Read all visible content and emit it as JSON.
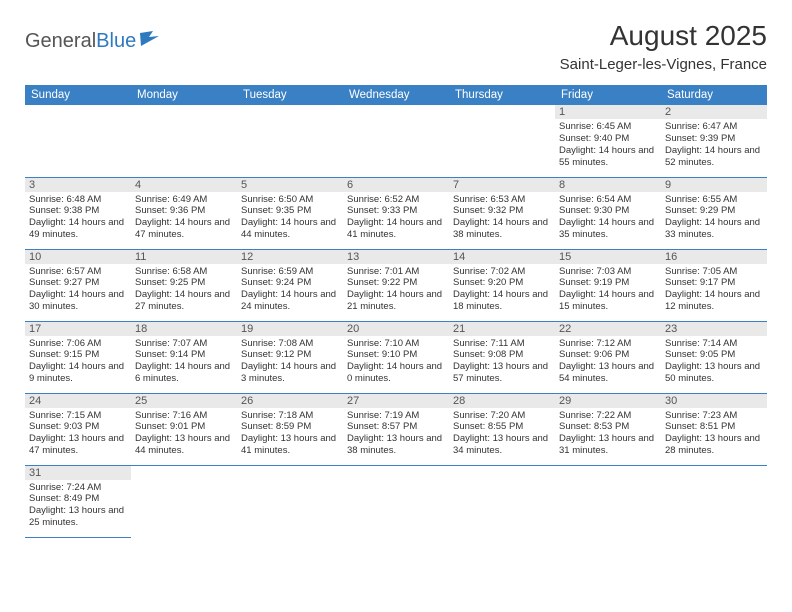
{
  "logo": {
    "text_gray": "General",
    "text_blue": "Blue"
  },
  "title": "August 2025",
  "location": "Saint-Leger-les-Vignes, France",
  "colors": {
    "header_bg": "#3a80c4",
    "header_text": "#ffffff",
    "daynum_bg": "#e9e9e9",
    "border": "#3a80c4",
    "body_text": "#333333"
  },
  "day_headers": [
    "Sunday",
    "Monday",
    "Tuesday",
    "Wednesday",
    "Thursday",
    "Friday",
    "Saturday"
  ],
  "weeks": [
    [
      null,
      null,
      null,
      null,
      null,
      {
        "n": "1",
        "sr": "6:45 AM",
        "ss": "9:40 PM",
        "dl": "14 hours and 55 minutes."
      },
      {
        "n": "2",
        "sr": "6:47 AM",
        "ss": "9:39 PM",
        "dl": "14 hours and 52 minutes."
      }
    ],
    [
      {
        "n": "3",
        "sr": "6:48 AM",
        "ss": "9:38 PM",
        "dl": "14 hours and 49 minutes."
      },
      {
        "n": "4",
        "sr": "6:49 AM",
        "ss": "9:36 PM",
        "dl": "14 hours and 47 minutes."
      },
      {
        "n": "5",
        "sr": "6:50 AM",
        "ss": "9:35 PM",
        "dl": "14 hours and 44 minutes."
      },
      {
        "n": "6",
        "sr": "6:52 AM",
        "ss": "9:33 PM",
        "dl": "14 hours and 41 minutes."
      },
      {
        "n": "7",
        "sr": "6:53 AM",
        "ss": "9:32 PM",
        "dl": "14 hours and 38 minutes."
      },
      {
        "n": "8",
        "sr": "6:54 AM",
        "ss": "9:30 PM",
        "dl": "14 hours and 35 minutes."
      },
      {
        "n": "9",
        "sr": "6:55 AM",
        "ss": "9:29 PM",
        "dl": "14 hours and 33 minutes."
      }
    ],
    [
      {
        "n": "10",
        "sr": "6:57 AM",
        "ss": "9:27 PM",
        "dl": "14 hours and 30 minutes."
      },
      {
        "n": "11",
        "sr": "6:58 AM",
        "ss": "9:25 PM",
        "dl": "14 hours and 27 minutes."
      },
      {
        "n": "12",
        "sr": "6:59 AM",
        "ss": "9:24 PM",
        "dl": "14 hours and 24 minutes."
      },
      {
        "n": "13",
        "sr": "7:01 AM",
        "ss": "9:22 PM",
        "dl": "14 hours and 21 minutes."
      },
      {
        "n": "14",
        "sr": "7:02 AM",
        "ss": "9:20 PM",
        "dl": "14 hours and 18 minutes."
      },
      {
        "n": "15",
        "sr": "7:03 AM",
        "ss": "9:19 PM",
        "dl": "14 hours and 15 minutes."
      },
      {
        "n": "16",
        "sr": "7:05 AM",
        "ss": "9:17 PM",
        "dl": "14 hours and 12 minutes."
      }
    ],
    [
      {
        "n": "17",
        "sr": "7:06 AM",
        "ss": "9:15 PM",
        "dl": "14 hours and 9 minutes."
      },
      {
        "n": "18",
        "sr": "7:07 AM",
        "ss": "9:14 PM",
        "dl": "14 hours and 6 minutes."
      },
      {
        "n": "19",
        "sr": "7:08 AM",
        "ss": "9:12 PM",
        "dl": "14 hours and 3 minutes."
      },
      {
        "n": "20",
        "sr": "7:10 AM",
        "ss": "9:10 PM",
        "dl": "14 hours and 0 minutes."
      },
      {
        "n": "21",
        "sr": "7:11 AM",
        "ss": "9:08 PM",
        "dl": "13 hours and 57 minutes."
      },
      {
        "n": "22",
        "sr": "7:12 AM",
        "ss": "9:06 PM",
        "dl": "13 hours and 54 minutes."
      },
      {
        "n": "23",
        "sr": "7:14 AM",
        "ss": "9:05 PM",
        "dl": "13 hours and 50 minutes."
      }
    ],
    [
      {
        "n": "24",
        "sr": "7:15 AM",
        "ss": "9:03 PM",
        "dl": "13 hours and 47 minutes."
      },
      {
        "n": "25",
        "sr": "7:16 AM",
        "ss": "9:01 PM",
        "dl": "13 hours and 44 minutes."
      },
      {
        "n": "26",
        "sr": "7:18 AM",
        "ss": "8:59 PM",
        "dl": "13 hours and 41 minutes."
      },
      {
        "n": "27",
        "sr": "7:19 AM",
        "ss": "8:57 PM",
        "dl": "13 hours and 38 minutes."
      },
      {
        "n": "28",
        "sr": "7:20 AM",
        "ss": "8:55 PM",
        "dl": "13 hours and 34 minutes."
      },
      {
        "n": "29",
        "sr": "7:22 AM",
        "ss": "8:53 PM",
        "dl": "13 hours and 31 minutes."
      },
      {
        "n": "30",
        "sr": "7:23 AM",
        "ss": "8:51 PM",
        "dl": "13 hours and 28 minutes."
      }
    ],
    [
      {
        "n": "31",
        "sr": "7:24 AM",
        "ss": "8:49 PM",
        "dl": "13 hours and 25 minutes."
      },
      null,
      null,
      null,
      null,
      null,
      null
    ]
  ],
  "labels": {
    "sunrise": "Sunrise:",
    "sunset": "Sunset:",
    "daylight": "Daylight:"
  }
}
